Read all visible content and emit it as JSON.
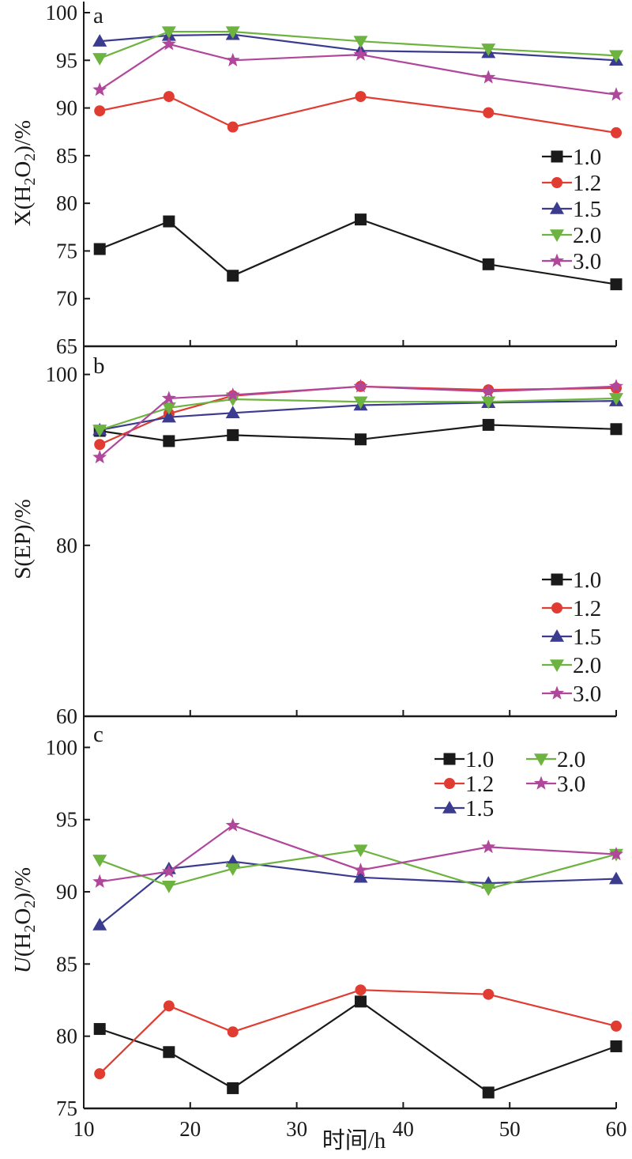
{
  "figure": {
    "xlabel": "时间/h"
  },
  "chart_data": [
    {
      "type": "line",
      "panel": "a",
      "ylabel": "X(H2O2)/%",
      "xlabel": "时间/h",
      "xlim": [
        10,
        60
      ],
      "ylim": [
        65,
        100
      ],
      "yticks": [
        65,
        70,
        75,
        80,
        85,
        90,
        95,
        100
      ],
      "xticks": [
        10,
        20,
        30,
        40,
        50,
        60
      ],
      "legend": "right",
      "x": [
        11.5,
        18,
        24,
        36,
        48,
        60
      ],
      "series": [
        {
          "name": "1.0",
          "color": "#1a1a1a",
          "marker": "square",
          "values": [
            75.2,
            78.1,
            72.4,
            78.3,
            73.6,
            71.5
          ]
        },
        {
          "name": "1.2",
          "color": "#e03c31",
          "marker": "circle",
          "values": [
            89.7,
            91.2,
            88.0,
            91.2,
            89.5,
            87.4
          ]
        },
        {
          "name": "1.5",
          "color": "#3b3b8f",
          "marker": "triangle-up",
          "values": [
            97.0,
            97.6,
            97.7,
            96.0,
            95.8,
            95.0
          ]
        },
        {
          "name": "2.0",
          "color": "#6db33f",
          "marker": "triangle-down",
          "values": [
            95.2,
            98.0,
            98.0,
            97.0,
            96.2,
            95.5
          ]
        },
        {
          "name": "3.0",
          "color": "#b0479b",
          "marker": "star",
          "values": [
            91.9,
            96.7,
            95.0,
            95.6,
            93.2,
            91.4
          ]
        }
      ]
    },
    {
      "type": "line",
      "panel": "b",
      "ylabel": "S(EP)/%",
      "xlabel": "时间/h",
      "xlim": [
        10,
        60
      ],
      "ylim": [
        60,
        102
      ],
      "yticks": [
        60,
        80,
        100
      ],
      "xticks": [
        10,
        20,
        30,
        40,
        50,
        60
      ],
      "legend": "right",
      "x": [
        11.5,
        18,
        24,
        36,
        48,
        60
      ],
      "series": [
        {
          "name": "1.0",
          "color": "#1a1a1a",
          "marker": "square",
          "values": [
            93.4,
            92.2,
            92.9,
            92.4,
            94.1,
            93.6
          ]
        },
        {
          "name": "1.2",
          "color": "#e03c31",
          "marker": "circle",
          "values": [
            91.8,
            95.4,
            97.5,
            98.6,
            98.2,
            98.4
          ]
        },
        {
          "name": "1.5",
          "color": "#3b3b8f",
          "marker": "triangle-up",
          "values": [
            93.5,
            95.0,
            95.5,
            96.4,
            96.7,
            96.9
          ]
        },
        {
          "name": "2.0",
          "color": "#6db33f",
          "marker": "triangle-down",
          "values": [
            93.5,
            96.1,
            97.1,
            96.8,
            96.8,
            97.2
          ]
        },
        {
          "name": "3.0",
          "color": "#b0479b",
          "marker": "star",
          "values": [
            90.3,
            97.2,
            97.6,
            98.6,
            98.0,
            98.6
          ]
        }
      ]
    },
    {
      "type": "line",
      "panel": "c",
      "ylabel": "U(H2O2)/%",
      "xlabel": "时间/h",
      "xlim": [
        10,
        60
      ],
      "ylim": [
        75,
        101.5
      ],
      "yticks": [
        75,
        80,
        85,
        90,
        95,
        100
      ],
      "xticks": [
        10,
        20,
        30,
        40,
        50,
        60
      ],
      "legend": "top-right",
      "x": [
        11.5,
        18,
        24,
        36,
        48,
        60
      ],
      "series": [
        {
          "name": "1.0",
          "color": "#1a1a1a",
          "marker": "square",
          "values": [
            80.5,
            78.9,
            76.4,
            82.4,
            76.1,
            79.3
          ]
        },
        {
          "name": "1.2",
          "color": "#e03c31",
          "marker": "circle",
          "values": [
            77.4,
            82.1,
            80.3,
            83.2,
            82.9,
            80.7
          ]
        },
        {
          "name": "1.5",
          "color": "#3b3b8f",
          "marker": "triangle-up",
          "values": [
            87.7,
            91.6,
            92.1,
            91.0,
            90.6,
            90.9
          ]
        },
        {
          "name": "2.0",
          "color": "#6db33f",
          "marker": "triangle-down",
          "values": [
            92.2,
            90.4,
            91.6,
            92.9,
            90.2,
            92.6
          ]
        },
        {
          "name": "3.0",
          "color": "#b0479b",
          "marker": "star",
          "values": [
            90.7,
            91.4,
            94.6,
            91.5,
            93.1,
            92.6
          ]
        }
      ]
    }
  ]
}
